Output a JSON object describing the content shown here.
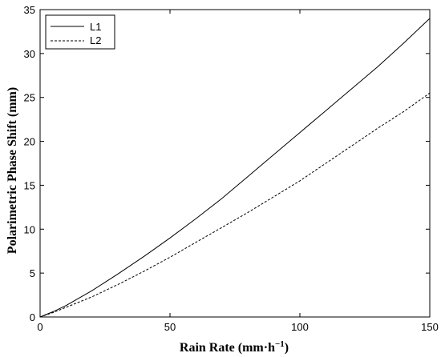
{
  "chart_data": {
    "type": "line",
    "title": "",
    "xlabel": "Rain Rate (mm·h",
    "xlabel_sup": "−1",
    "xlabel_close": ")",
    "ylabel": "Polarimetric Phase Shift (mm)",
    "xlim": [
      0,
      150
    ],
    "ylim": [
      0,
      35
    ],
    "xticks": [
      0,
      50,
      100,
      150
    ],
    "yticks": [
      0,
      5,
      10,
      15,
      20,
      25,
      30,
      35
    ],
    "grid": false,
    "legend_position": "top-left",
    "series": [
      {
        "name": "L1",
        "style": "solid",
        "color": "#000000",
        "x": [
          0,
          5,
          10,
          20,
          30,
          40,
          50,
          60,
          70,
          80,
          90,
          100,
          110,
          120,
          130,
          140,
          150
        ],
        "y": [
          0,
          0.6,
          1.3,
          3.0,
          4.9,
          6.9,
          9.0,
          11.2,
          13.5,
          16.0,
          18.5,
          21.0,
          23.5,
          26.0,
          28.5,
          31.2,
          34.0
        ]
      },
      {
        "name": "L2",
        "style": "dashed",
        "color": "#000000",
        "x": [
          0,
          5,
          10,
          20,
          30,
          40,
          50,
          60,
          70,
          80,
          90,
          100,
          110,
          120,
          130,
          140,
          150
        ],
        "y": [
          0,
          0.5,
          1.1,
          2.3,
          3.7,
          5.2,
          6.8,
          8.5,
          10.2,
          11.9,
          13.7,
          15.5,
          17.5,
          19.5,
          21.5,
          23.4,
          25.5
        ]
      }
    ]
  }
}
